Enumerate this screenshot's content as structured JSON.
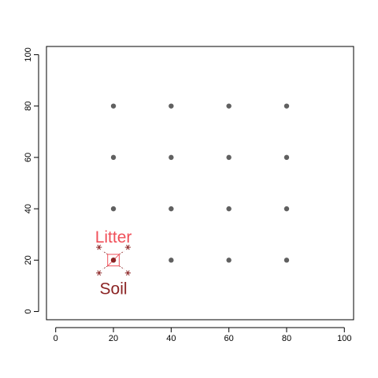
{
  "chart_data": {
    "type": "scatter",
    "title": "",
    "xlabel": "",
    "ylabel": "",
    "xlim": [
      -3.2,
      103.2
    ],
    "ylim": [
      -3.2,
      103.2
    ],
    "x_ticks": [
      "0",
      "20",
      "40",
      "60",
      "80",
      "100"
    ],
    "y_ticks": [
      "0",
      "20",
      "40",
      "60",
      "80",
      "100"
    ],
    "grid": false,
    "point_color": "#606060",
    "points": [
      {
        "x": 20,
        "y": 80
      },
      {
        "x": 40,
        "y": 80
      },
      {
        "x": 60,
        "y": 80
      },
      {
        "x": 80,
        "y": 80
      },
      {
        "x": 20,
        "y": 60
      },
      {
        "x": 40,
        "y": 60
      },
      {
        "x": 60,
        "y": 60
      },
      {
        "x": 80,
        "y": 60
      },
      {
        "x": 20,
        "y": 40
      },
      {
        "x": 40,
        "y": 40
      },
      {
        "x": 60,
        "y": 40
      },
      {
        "x": 80,
        "y": 40
      },
      {
        "x": 20,
        "y": 20
      },
      {
        "x": 40,
        "y": 20
      },
      {
        "x": 60,
        "y": 20
      },
      {
        "x": 80,
        "y": 20
      }
    ],
    "highlight": {
      "center": {
        "x": 20,
        "y": 20
      },
      "box_size": 4,
      "box_color": "#f0505a",
      "star_color": "#8b2323",
      "stars": [
        {
          "x": 15,
          "y": 25
        },
        {
          "x": 25,
          "y": 25
        },
        {
          "x": 15,
          "y": 15
        },
        {
          "x": 25,
          "y": 15
        }
      ]
    },
    "annotations": [
      {
        "text": "Litter",
        "x": 20,
        "y": 28.5,
        "color": "#f0505a"
      },
      {
        "text": "Soil",
        "x": 20,
        "y": 8.5,
        "color": "#8b2323"
      }
    ]
  }
}
